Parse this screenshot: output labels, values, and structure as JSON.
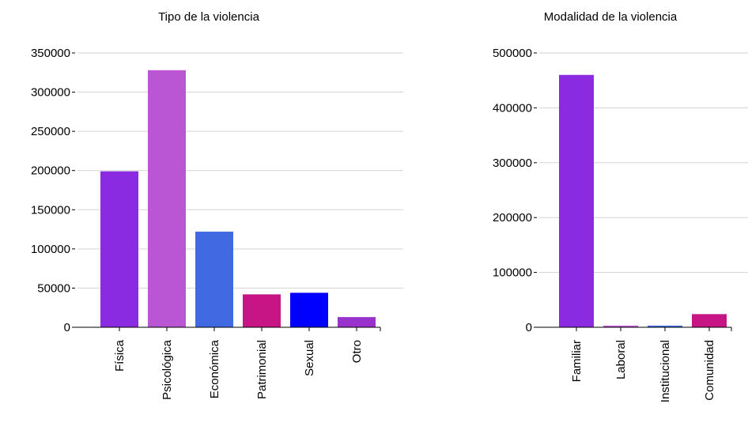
{
  "chart_data": [
    {
      "type": "bar",
      "title": "Tipo de la violencia",
      "xlabel": "",
      "ylabel": "",
      "categories": [
        "Física",
        "Psicológica",
        "Económica",
        "Patrimonial",
        "Sexual",
        "Otro"
      ],
      "values": [
        199000,
        328000,
        122000,
        42000,
        44000,
        13000
      ],
      "colors": [
        "#8a2be2",
        "#ba55d3",
        "#4169e1",
        "#c71585",
        "#0000ff",
        "#9932cc"
      ],
      "ylim": [
        0,
        350000
      ],
      "yticks": [
        0,
        50000,
        100000,
        150000,
        200000,
        250000,
        300000,
        350000
      ],
      "grid": true,
      "legend": "none"
    },
    {
      "type": "bar",
      "title": "Modalidad de la violencia",
      "xlabel": "",
      "ylabel": "",
      "categories": [
        "Familiar",
        "Laboral",
        "Institucional",
        "Comunidad"
      ],
      "values": [
        460000,
        3000,
        3000,
        24000
      ],
      "colors": [
        "#8a2be2",
        "#ba55d3",
        "#4169e1",
        "#c71585"
      ],
      "ylim": [
        0,
        500000
      ],
      "yticks": [
        0,
        100000,
        200000,
        300000,
        400000,
        500000
      ],
      "grid": true,
      "legend": "none"
    }
  ]
}
